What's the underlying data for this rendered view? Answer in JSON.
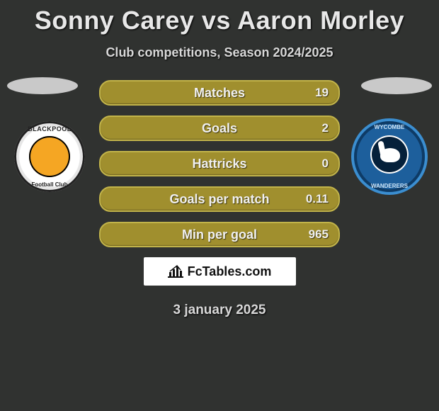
{
  "title": "Sonny Carey vs Aaron Morley",
  "subtitle": "Club competitions, Season 2024/2025",
  "date": "3 january 2025",
  "brand": "FcTables.com",
  "left_crest": {
    "top": "BLACKPOOL",
    "bottom": "Football Club"
  },
  "right_crest": {
    "top": "WYCOMBE",
    "bottom": "WANDERERS"
  },
  "colors": {
    "background": "#303230",
    "bar_fill": "#a08f2e",
    "bar_border": "#c2b44a",
    "text": "#f0f0f0",
    "brandbox_bg": "#ffffff",
    "brandbox_text": "#111111",
    "left_crest_primary": "#f5a623",
    "right_crest_primary": "#1d5f9c",
    "right_crest_ring": "#3b8ed0"
  },
  "stats": [
    {
      "label": "Matches",
      "value": "19"
    },
    {
      "label": "Goals",
      "value": "2"
    },
    {
      "label": "Hattricks",
      "value": "0"
    },
    {
      "label": "Goals per match",
      "value": "0.11"
    },
    {
      "label": "Min per goal",
      "value": "965"
    }
  ]
}
